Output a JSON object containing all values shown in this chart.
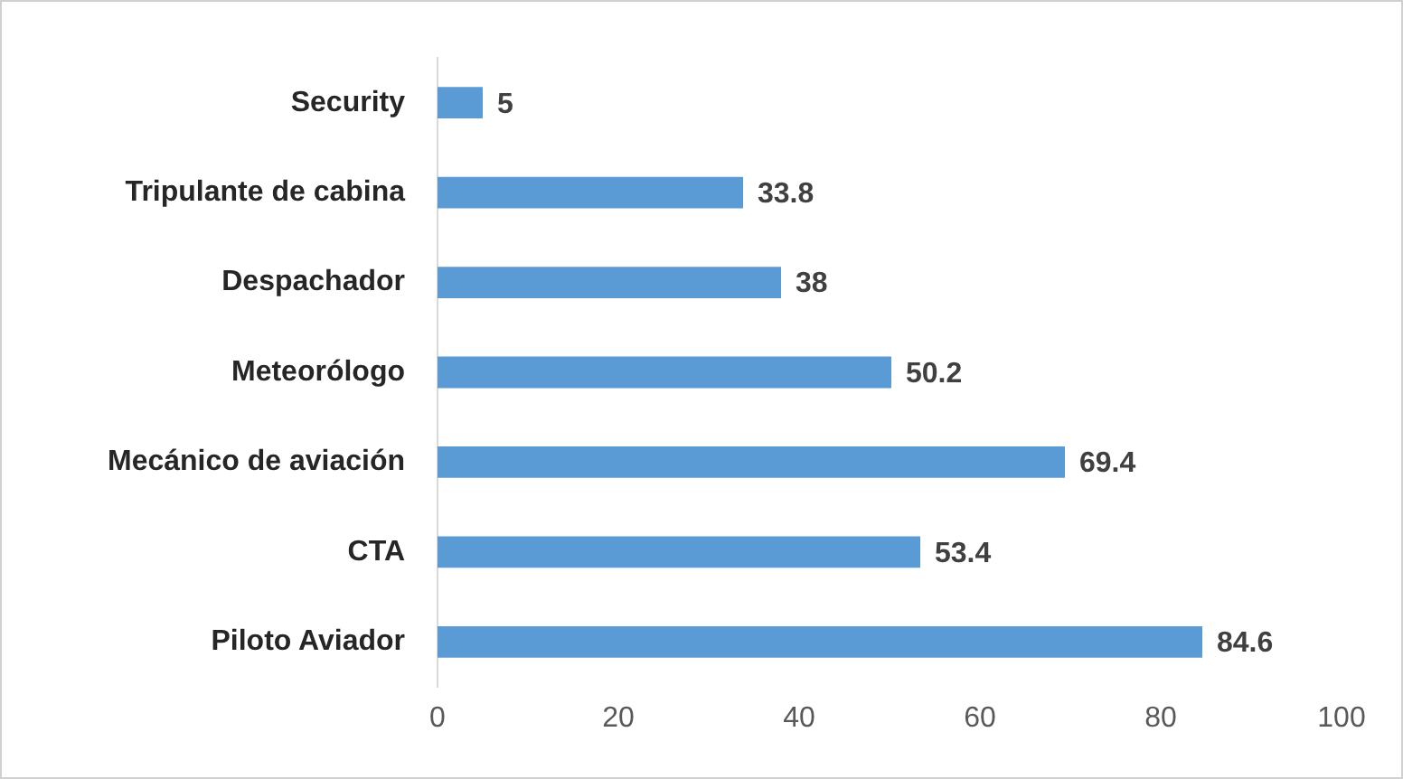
{
  "chart_data": {
    "type": "bar",
    "orientation": "horizontal",
    "categories": [
      "Security",
      "Tripulante de cabina",
      "Despachador",
      "Meteorólogo",
      "Mecánico de aviación",
      "CTA",
      "Piloto Aviador"
    ],
    "values": [
      5,
      33.8,
      38,
      50.2,
      69.4,
      53.4,
      84.6
    ],
    "color": "#5b9bd5",
    "xlim": [
      0,
      100
    ],
    "xticks": [
      0,
      20,
      40,
      60,
      80,
      100
    ],
    "grid": false,
    "legend": false,
    "data_labels": true
  }
}
